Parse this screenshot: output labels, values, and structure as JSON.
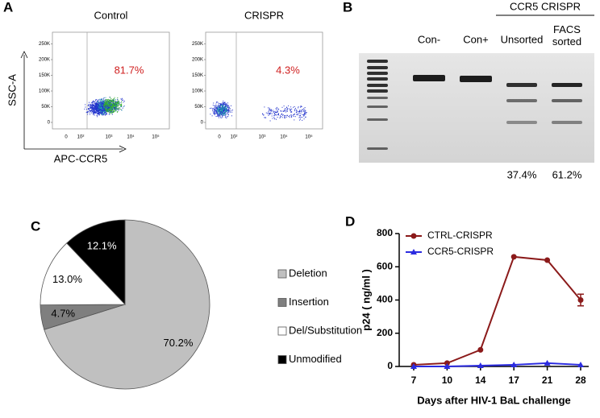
{
  "panels": {
    "a": "A",
    "b": "B",
    "c": "C",
    "d": "D"
  },
  "flow": {
    "plots": [
      {
        "title": "Control",
        "percent": "81.7%"
      },
      {
        "title": "CRISPR",
        "percent": "4.3%"
      }
    ],
    "y_label": "SSC-A",
    "x_label": "APC-CCR5",
    "yticks": [
      "0",
      "50K",
      "100K",
      "150K",
      "200K",
      "250K"
    ],
    "xticks": [
      "0",
      "10²",
      "10³",
      "10⁴",
      "10⁵"
    ]
  },
  "gel": {
    "header": "CCR5 CRISPR",
    "lanes": [
      "Con-",
      "Con+",
      "Unsorted",
      "FACS sorted"
    ],
    "percents": [
      "37.4%",
      "61.2%"
    ]
  },
  "chart_data": [
    {
      "type": "pie",
      "categories": [
        "Deletion",
        "Insertion",
        "Del/Substitution",
        "Unmodified"
      ],
      "values": [
        70.2,
        4.7,
        13.0,
        12.1
      ],
      "value_labels": [
        "70.2%",
        "4.7%",
        "13.0%",
        "12.1%"
      ],
      "colors": [
        "#c0c0c0",
        "#7f7f7f",
        "#ffffff",
        "#000000"
      ],
      "legend": "right"
    },
    {
      "type": "line",
      "x_label": "Days after HIV-1 BaL challenge",
      "y_label": "p24 ( ng/ml )",
      "categories": [
        "7",
        "10",
        "14",
        "17",
        "21",
        "28"
      ],
      "series": [
        {
          "name": "CTRL-CRISPR",
          "color": "#8b1a1a",
          "marker": "circle",
          "values": [
            10,
            20,
            100,
            660,
            640,
            400
          ],
          "errors": [
            null,
            null,
            null,
            null,
            null,
            35
          ]
        },
        {
          "name": "CCR5-CRISPR",
          "color": "#2b2be0",
          "marker": "triangle",
          "values": [
            0,
            0,
            5,
            10,
            20,
            10
          ]
        }
      ],
      "ylim": [
        0,
        800
      ],
      "yticks": [
        0,
        200,
        400,
        600,
        800
      ],
      "legend": "upper left"
    }
  ]
}
